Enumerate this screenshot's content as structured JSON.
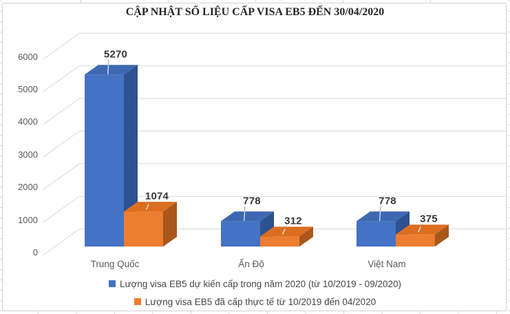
{
  "chart_data": {
    "type": "bar",
    "subtype": "3d-clustered-column",
    "title": "CẬP NHẬT SỐ LIỆU CẤP VISA EB5 ĐẾN 30/04/2020",
    "categories": [
      "Trung Quốc",
      "Ấn Độ",
      "Việt Nam"
    ],
    "series": [
      {
        "name": "Lượng visa EB5 dự kiến cấp trong năm 2020 (từ 10/2019 - 09/2020)",
        "color": "#4472C4",
        "values": [
          5270,
          778,
          778
        ]
      },
      {
        "name": "Lượng visa EB5 đã cấp thực tế từ 10/2019 đến 04/2020",
        "color": "#ED7D31",
        "values": [
          1074,
          312,
          375
        ]
      }
    ],
    "xlabel": "",
    "ylabel": "",
    "ylim": [
      0,
      6000
    ],
    "ytick_step": 1000,
    "yticks": [
      "0",
      "1000",
      "2000",
      "3000",
      "4000",
      "5000",
      "6000"
    ],
    "grid": true,
    "legend_position": "bottom",
    "data_labels": true
  },
  "colors": {
    "blue_front": "#4472C4",
    "blue_top": "#3E68B2",
    "blue_side": "#2D5191",
    "orange_front": "#ED7D31",
    "orange_top": "#DC6E20",
    "orange_side": "#A9571B",
    "gridline": "#D9D9D9",
    "axis_text": "#595959",
    "data_label_text": "#363636",
    "leader_line": "#A0A0A0",
    "chart_border": "#D2D2D2",
    "cell_line": "#D9D9D9"
  }
}
